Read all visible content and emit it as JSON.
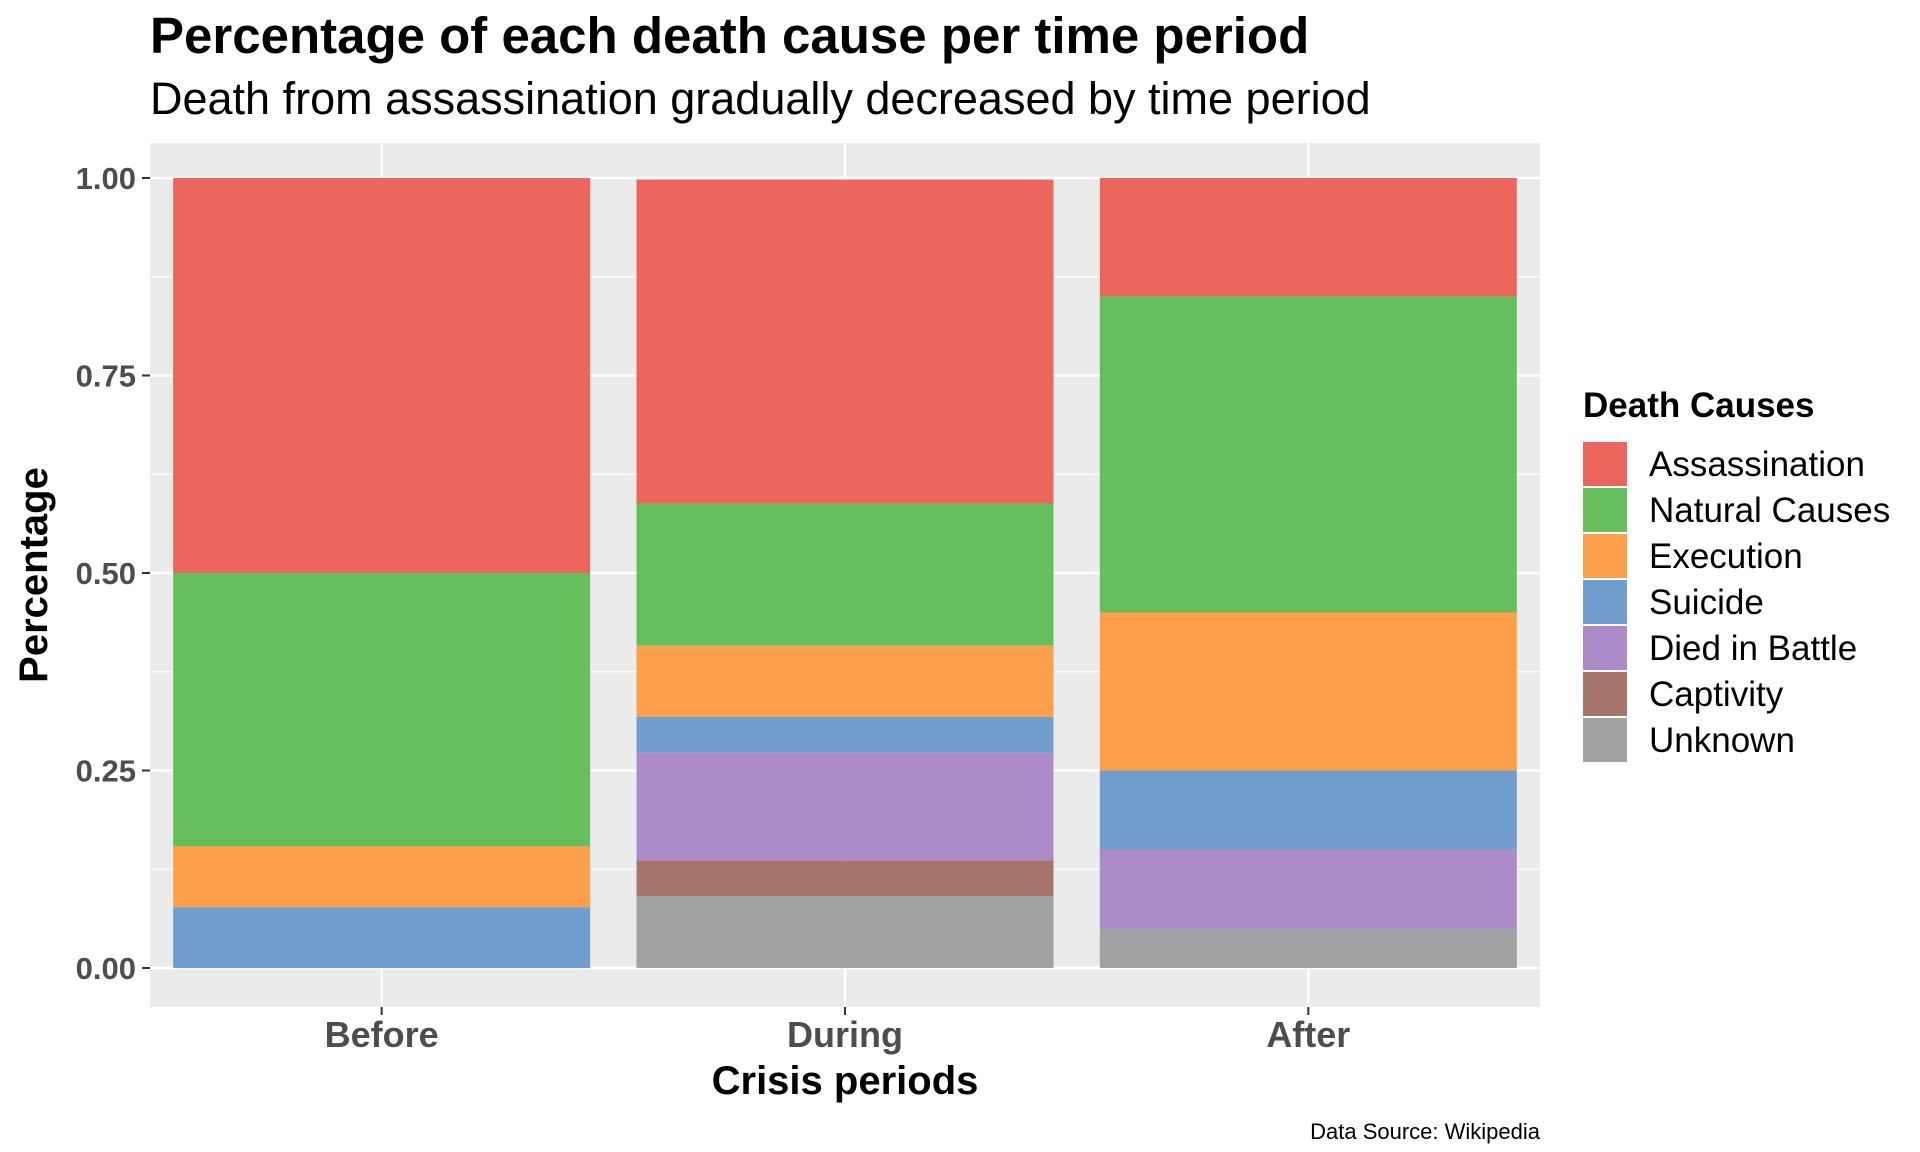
{
  "chart_data": {
    "type": "bar",
    "stacked": true,
    "title": "Percentage of each death cause per time period",
    "subtitle": "Death from assassination gradually decreased by time period",
    "xlabel": "Crisis periods",
    "ylabel": "Percentage",
    "caption": "Data Source: Wikipedia",
    "categories": [
      "Before",
      "During",
      "After"
    ],
    "ylim": [
      0,
      1
    ],
    "yticks": [
      "0.00",
      "0.25",
      "0.50",
      "0.75",
      "1.00"
    ],
    "legend_title": "Death Causes",
    "legend_position": "right",
    "grid": true,
    "series": [
      {
        "name": "Assassination",
        "color": "#EC665D",
        "values": [
          0.5,
          0.41,
          0.15
        ]
      },
      {
        "name": "Natural Causes",
        "color": "#66BF5C",
        "values": [
          0.346,
          0.18,
          0.4
        ]
      },
      {
        "name": "Execution",
        "color": "#FE9F4B",
        "values": [
          0.077,
          0.09,
          0.2
        ]
      },
      {
        "name": "Suicide",
        "color": "#719ECD",
        "values": [
          0.077,
          0.045,
          0.1
        ]
      },
      {
        "name": "Died in Battle",
        "color": "#AD8BC8",
        "values": [
          0,
          0.137,
          0.1
        ]
      },
      {
        "name": "Captivity",
        "color": "#A6766D",
        "values": [
          0,
          0.045,
          0
        ]
      },
      {
        "name": "Unknown",
        "color": "#A2A2A2",
        "values": [
          0,
          0.091,
          0.05
        ]
      }
    ]
  }
}
